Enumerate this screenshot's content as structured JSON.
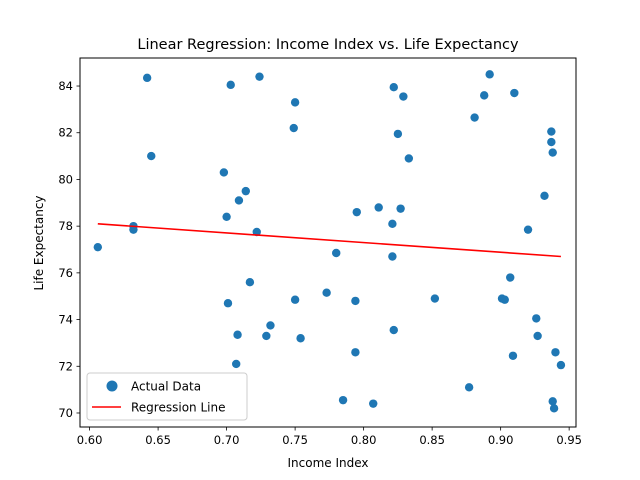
{
  "chart_data": {
    "type": "scatter",
    "title": "Linear Regression: Income Index vs. Life Expectancy",
    "xlabel": "Income Index",
    "ylabel": "Life Expectancy",
    "xlim": [
      0.593,
      0.955
    ],
    "ylim": [
      69.4,
      85.2
    ],
    "xticks": [
      "0.60",
      "0.65",
      "0.70",
      "0.75",
      "0.80",
      "0.85",
      "0.90",
      "0.95"
    ],
    "yticks": [
      "70",
      "72",
      "74",
      "76",
      "78",
      "80",
      "82",
      "84"
    ],
    "grid": false,
    "legend_placement": "lower-left",
    "series": [
      {
        "name": "Actual Data",
        "kind": "scatter",
        "color": "#1f77b4",
        "points": [
          [
            0.606,
            77.1
          ],
          [
            0.632,
            78.0
          ],
          [
            0.632,
            77.85
          ],
          [
            0.642,
            84.35
          ],
          [
            0.645,
            81.0
          ],
          [
            0.698,
            80.3
          ],
          [
            0.7,
            78.4
          ],
          [
            0.701,
            74.7
          ],
          [
            0.703,
            84.05
          ],
          [
            0.707,
            72.1
          ],
          [
            0.708,
            73.35
          ],
          [
            0.709,
            79.1
          ],
          [
            0.714,
            79.5
          ],
          [
            0.717,
            75.6
          ],
          [
            0.722,
            77.75
          ],
          [
            0.724,
            84.4
          ],
          [
            0.729,
            73.3
          ],
          [
            0.732,
            73.75
          ],
          [
            0.749,
            82.2
          ],
          [
            0.75,
            83.3
          ],
          [
            0.75,
            74.85
          ],
          [
            0.754,
            73.2
          ],
          [
            0.773,
            75.15
          ],
          [
            0.78,
            76.85
          ],
          [
            0.785,
            70.55
          ],
          [
            0.794,
            72.6
          ],
          [
            0.794,
            74.8
          ],
          [
            0.795,
            78.6
          ],
          [
            0.807,
            70.4
          ],
          [
            0.811,
            78.8
          ],
          [
            0.821,
            78.1
          ],
          [
            0.821,
            76.7
          ],
          [
            0.822,
            83.95
          ],
          [
            0.822,
            73.55
          ],
          [
            0.825,
            81.95
          ],
          [
            0.827,
            78.75
          ],
          [
            0.829,
            83.55
          ],
          [
            0.833,
            80.9
          ],
          [
            0.852,
            74.9
          ],
          [
            0.877,
            71.1
          ],
          [
            0.881,
            82.65
          ],
          [
            0.888,
            83.6
          ],
          [
            0.892,
            84.5
          ],
          [
            0.901,
            74.9
          ],
          [
            0.903,
            74.85
          ],
          [
            0.907,
            75.8
          ],
          [
            0.909,
            72.45
          ],
          [
            0.91,
            83.7
          ],
          [
            0.92,
            77.85
          ],
          [
            0.926,
            74.05
          ],
          [
            0.927,
            73.3
          ],
          [
            0.932,
            79.3
          ],
          [
            0.937,
            82.05
          ],
          [
            0.937,
            81.6
          ],
          [
            0.938,
            81.15
          ],
          [
            0.938,
            70.5
          ],
          [
            0.939,
            70.2
          ],
          [
            0.94,
            72.6
          ],
          [
            0.944,
            72.05
          ]
        ]
      },
      {
        "name": "Regression Line",
        "kind": "line",
        "color": "#ff0000",
        "points": [
          [
            0.606,
            78.1
          ],
          [
            0.944,
            76.7
          ]
        ]
      }
    ]
  }
}
